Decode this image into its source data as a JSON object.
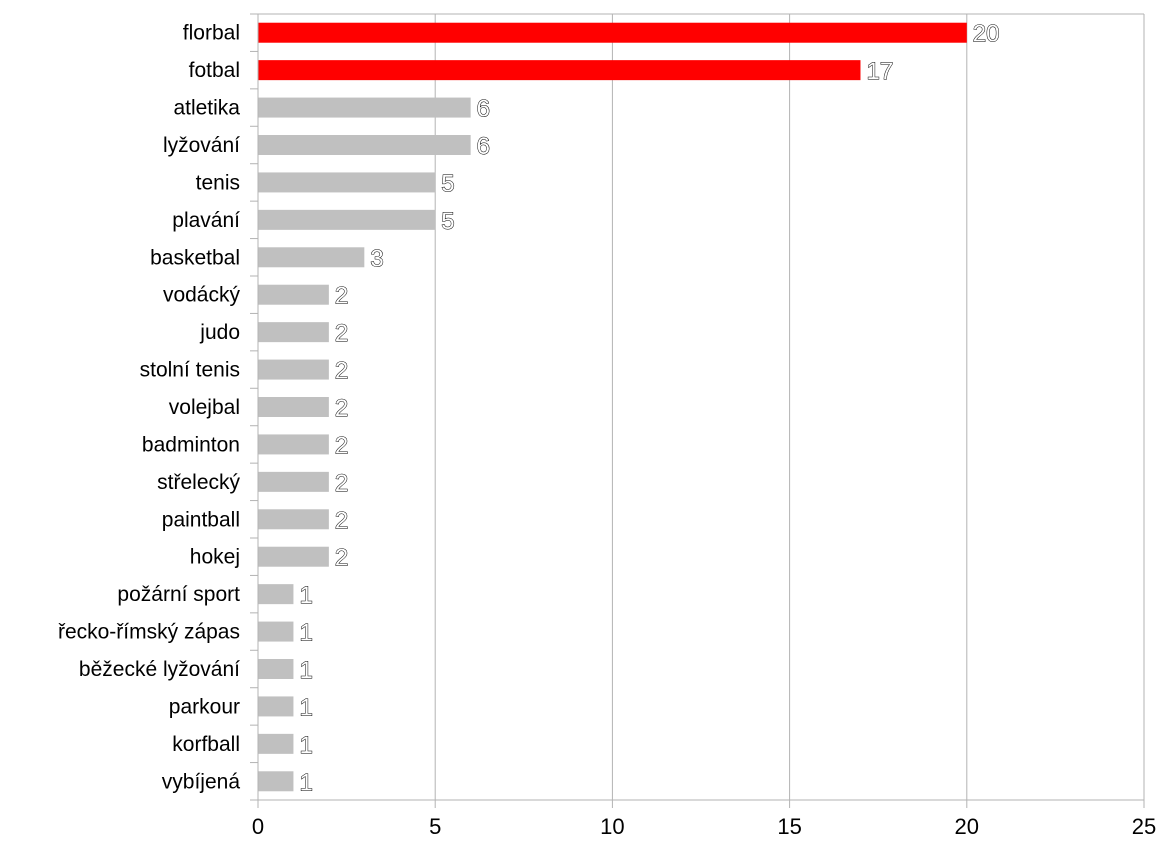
{
  "chart_data": {
    "type": "bar",
    "orientation": "horizontal",
    "categories": [
      "florbal",
      "fotbal",
      "atletika",
      "lyžování",
      "tenis",
      "plavání",
      "basketbal",
      "vodácký",
      "judo",
      "stolní tenis",
      "volejbal",
      "badminton",
      "střelecký",
      "paintball",
      "hokej",
      "požární sport",
      "řecko-římský zápas",
      "běžecké lyžování",
      "parkour",
      "korfball",
      "vybíjená"
    ],
    "values": [
      20,
      17,
      6,
      6,
      5,
      5,
      3,
      2,
      2,
      2,
      2,
      2,
      2,
      2,
      2,
      1,
      1,
      1,
      1,
      1,
      1
    ],
    "highlighted": [
      true,
      true,
      false,
      false,
      false,
      false,
      false,
      false,
      false,
      false,
      false,
      false,
      false,
      false,
      false,
      false,
      false,
      false,
      false,
      false,
      false
    ],
    "colors": {
      "highlight": "#ff0000",
      "default": "#c0c0c0",
      "grid": "#b3b3b3"
    },
    "xlim": [
      0,
      25
    ],
    "xticks": [
      0,
      5,
      10,
      15,
      20,
      25
    ],
    "grid": true,
    "legend": "none",
    "title": "",
    "xlabel": "",
    "ylabel": ""
  }
}
